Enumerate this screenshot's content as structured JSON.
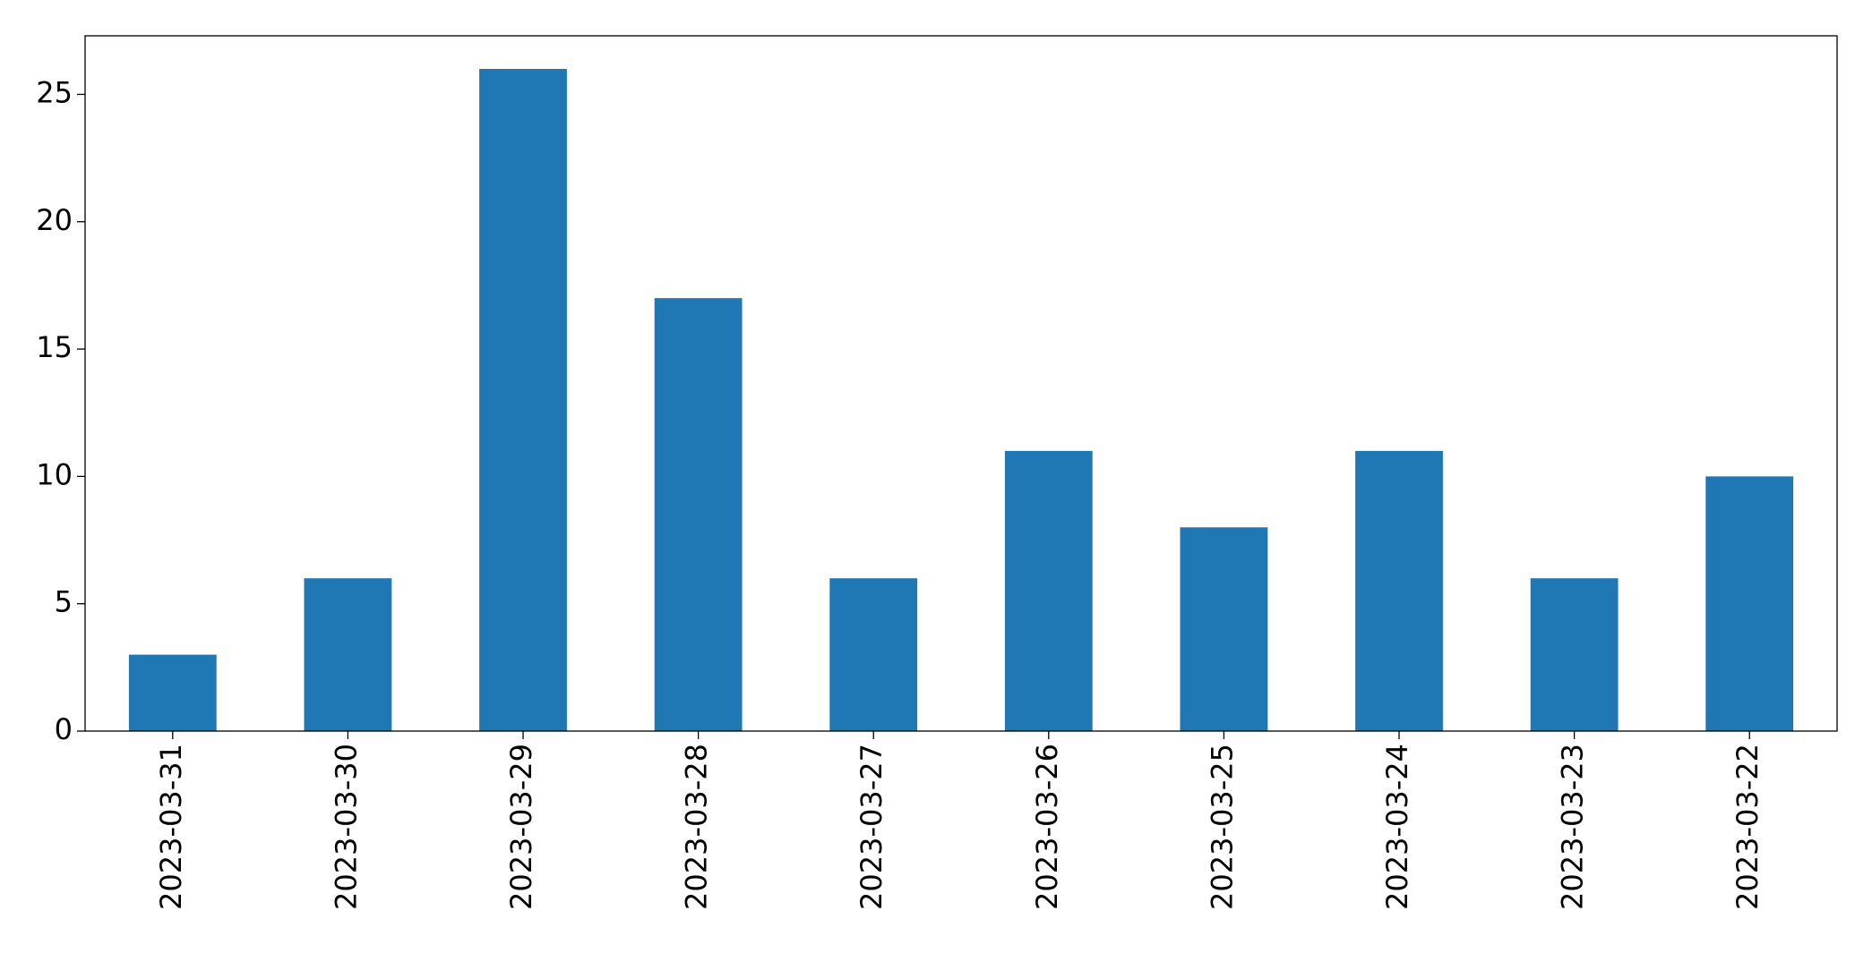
{
  "chart_data": {
    "type": "bar",
    "categories": [
      "2023-03-31",
      "2023-03-30",
      "2023-03-29",
      "2023-03-28",
      "2023-03-27",
      "2023-03-26",
      "2023-03-25",
      "2023-03-24",
      "2023-03-23",
      "2023-03-22"
    ],
    "values": [
      3,
      6,
      26,
      17,
      6,
      11,
      8,
      11,
      6,
      10
    ],
    "color": "#1f77b4",
    "ylim": [
      0,
      27.3
    ],
    "yticks": [
      0,
      5,
      10,
      15,
      20,
      25
    ],
    "grid": false
  }
}
